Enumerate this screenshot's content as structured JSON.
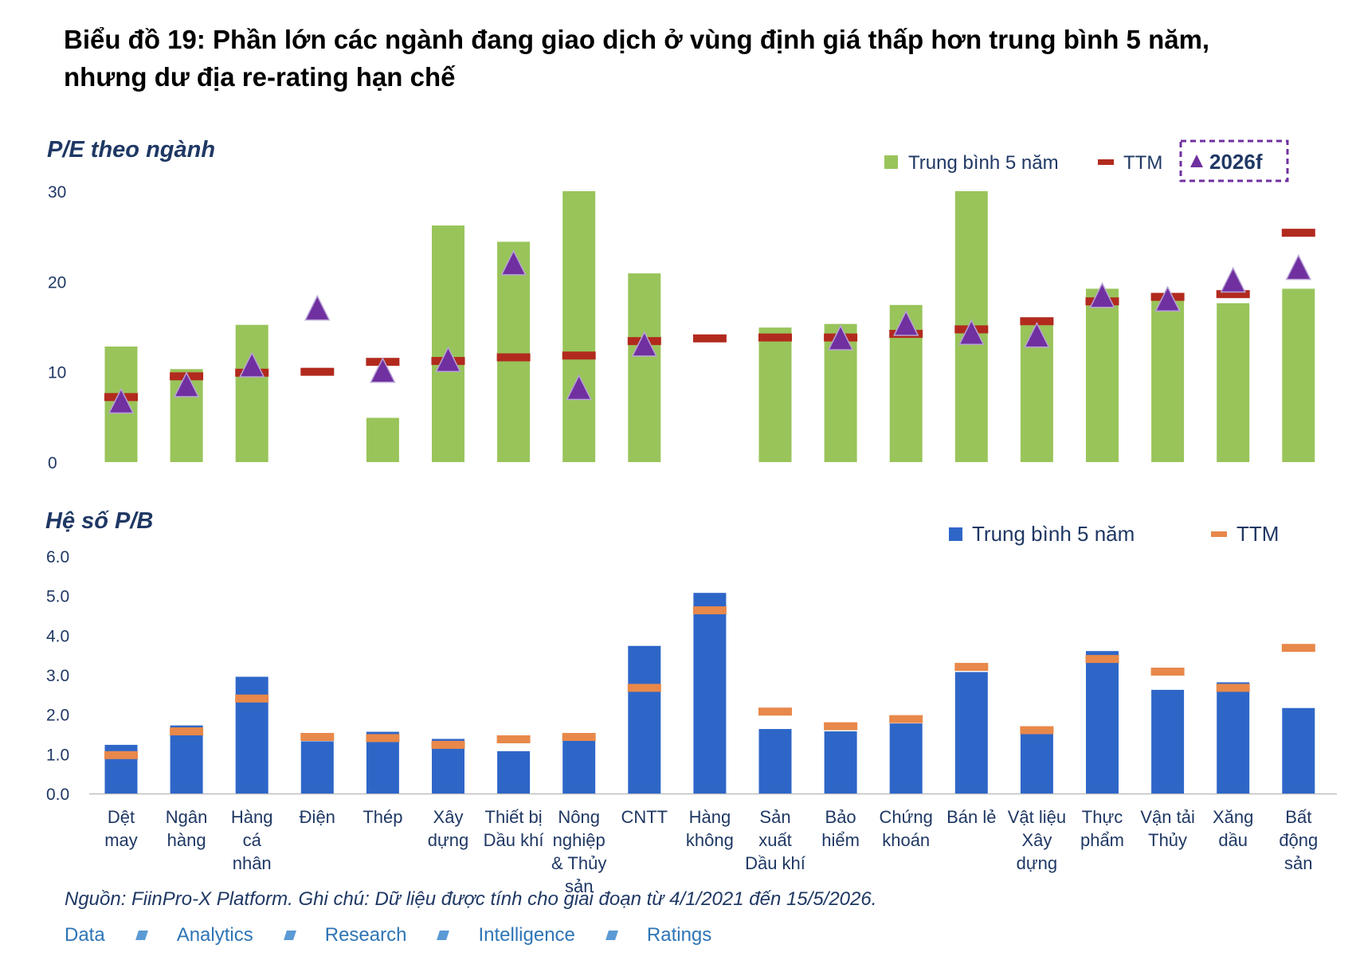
{
  "title": {
    "line1": "Biểu đồ 19: Phần lớn các ngành đang giao dịch ở vùng định giá thấp hơn trung bình 5 năm,",
    "line2": "nhưng dư địa re-rating hạn chế"
  },
  "colors": {
    "pe_bar": "#99c45a",
    "pe_ttm": "#b22a1e",
    "pe_2026f": "#7030a0",
    "pb_bar": "#2e66c8",
    "pb_ttm": "#e8884a",
    "axis_text": "#1f3864",
    "legend_box_border": "#7030a0"
  },
  "chart_data": [
    {
      "type": "bar",
      "title": "P/E theo ngành",
      "ylim": [
        0,
        30
      ],
      "yticks": [
        "0",
        "10",
        "20",
        "30"
      ],
      "legend": {
        "placement": "top-right",
        "items": [
          "Trung bình 5 năm",
          "TTM",
          "2026f"
        ]
      },
      "categories": [
        "Dệt may",
        "Ngân hàng",
        "Hàng cá nhân",
        "Điện",
        "Thép",
        "Xây dựng",
        "Thiết bị Dầu khí",
        "Nông nghiệp & Thủy sản",
        "CNTT",
        "Hàng không",
        "Sản xuất Dầu khí",
        "Bảo hiểm",
        "Chứng khoán",
        "Bán lẻ",
        "Vật liệu Xây dựng",
        "Thực phẩm",
        "Vận tải Thủy",
        "Xăng dầu",
        "Bất động sản"
      ],
      "series": [
        {
          "name": "Trung bình 5 năm",
          "kind": "bar",
          "values": [
            12.8,
            10.3,
            15.2,
            null,
            4.9,
            26.2,
            24.4,
            30.0,
            20.9,
            null,
            14.9,
            15.3,
            17.4,
            30.0,
            15.3,
            19.2,
            18.5,
            17.6,
            19.2
          ]
        },
        {
          "name": "TTM",
          "kind": "dash",
          "values": [
            7.2,
            9.5,
            9.9,
            10.0,
            11.1,
            11.2,
            11.6,
            11.8,
            13.4,
            13.7,
            13.8,
            13.8,
            14.2,
            14.7,
            15.6,
            17.8,
            18.3,
            18.6,
            25.4
          ]
        },
        {
          "name": "2026f",
          "kind": "triangle",
          "values": [
            6.5,
            8.3,
            10.5,
            16.8,
            9.9,
            11.1,
            21.8,
            8.0,
            12.8,
            null,
            null,
            13.5,
            15.1,
            14.1,
            13.8,
            18.2,
            17.8,
            19.9,
            21.3
          ]
        }
      ]
    },
    {
      "type": "bar",
      "title": "Hệ số P/B",
      "ylim": [
        0,
        6
      ],
      "yticks": [
        "0.0",
        "1.0",
        "2.0",
        "3.0",
        "4.0",
        "5.0",
        "6.0"
      ],
      "legend": {
        "placement": "top-right",
        "items": [
          "Trung bình 5 năm",
          "TTM"
        ]
      },
      "categories": [
        "Dệt may",
        "Ngân hàng",
        "Hàng cá nhân",
        "Điện",
        "Thép",
        "Xây dựng",
        "Thiết bị Dầu khí",
        "Nông nghiệp & Thủy sản",
        "CNTT",
        "Hàng không",
        "Sản xuất Dầu khí",
        "Bảo hiểm",
        "Chứng khoán",
        "Bán lẻ",
        "Vật liệu Xây dựng",
        "Thực phẩm",
        "Vận tải Thủy",
        "Xăng dầu",
        "Bất động sản"
      ],
      "series": [
        {
          "name": "Trung bình 5 năm",
          "kind": "bar",
          "values": [
            1.23,
            1.72,
            2.95,
            1.32,
            1.56,
            1.38,
            1.07,
            1.33,
            3.73,
            5.07,
            1.63,
            1.57,
            1.77,
            3.07,
            1.5,
            3.6,
            2.62,
            2.81,
            2.16
          ]
        },
        {
          "name": "TTM",
          "kind": "dash",
          "values": [
            0.97,
            1.57,
            2.4,
            1.43,
            1.4,
            1.23,
            1.37,
            1.43,
            2.67,
            4.63,
            2.07,
            1.7,
            1.88,
            3.2,
            1.6,
            3.4,
            3.08,
            2.67,
            3.68
          ]
        }
      ]
    }
  ],
  "axis_labels": [
    [
      "Dệt",
      "may"
    ],
    [
      "Ngân",
      "hàng"
    ],
    [
      "Hàng",
      "cá",
      "nhân"
    ],
    [
      "Điện"
    ],
    [
      "Thép"
    ],
    [
      "Xây",
      "dựng"
    ],
    [
      "Thiết bị",
      "Dầu khí"
    ],
    [
      "Nông",
      "nghiệp",
      "& Thủy",
      "sản"
    ],
    [
      "CNTT"
    ],
    [
      "Hàng",
      "không"
    ],
    [
      "Sản",
      "xuất",
      "Dầu khí"
    ],
    [
      "Bảo",
      "hiểm"
    ],
    [
      "Chứng",
      "khoán"
    ],
    [
      "Bán lẻ"
    ],
    [
      "Vật liệu",
      "Xây",
      "dựng"
    ],
    [
      "Thực",
      "phẩm"
    ],
    [
      "Vận tải",
      "Thủy"
    ],
    [
      "Xăng",
      "dầu"
    ],
    [
      "Bất",
      "động",
      "sản"
    ]
  ],
  "source_note": "Nguồn: FiinPro-X Platform. Ghi chú: Dữ liệu được tính cho giai đoạn từ 4/1/2021 đến 15/5/2026.",
  "footer": [
    "Data",
    "Analytics",
    "Research",
    "Intelligence",
    "Ratings"
  ]
}
